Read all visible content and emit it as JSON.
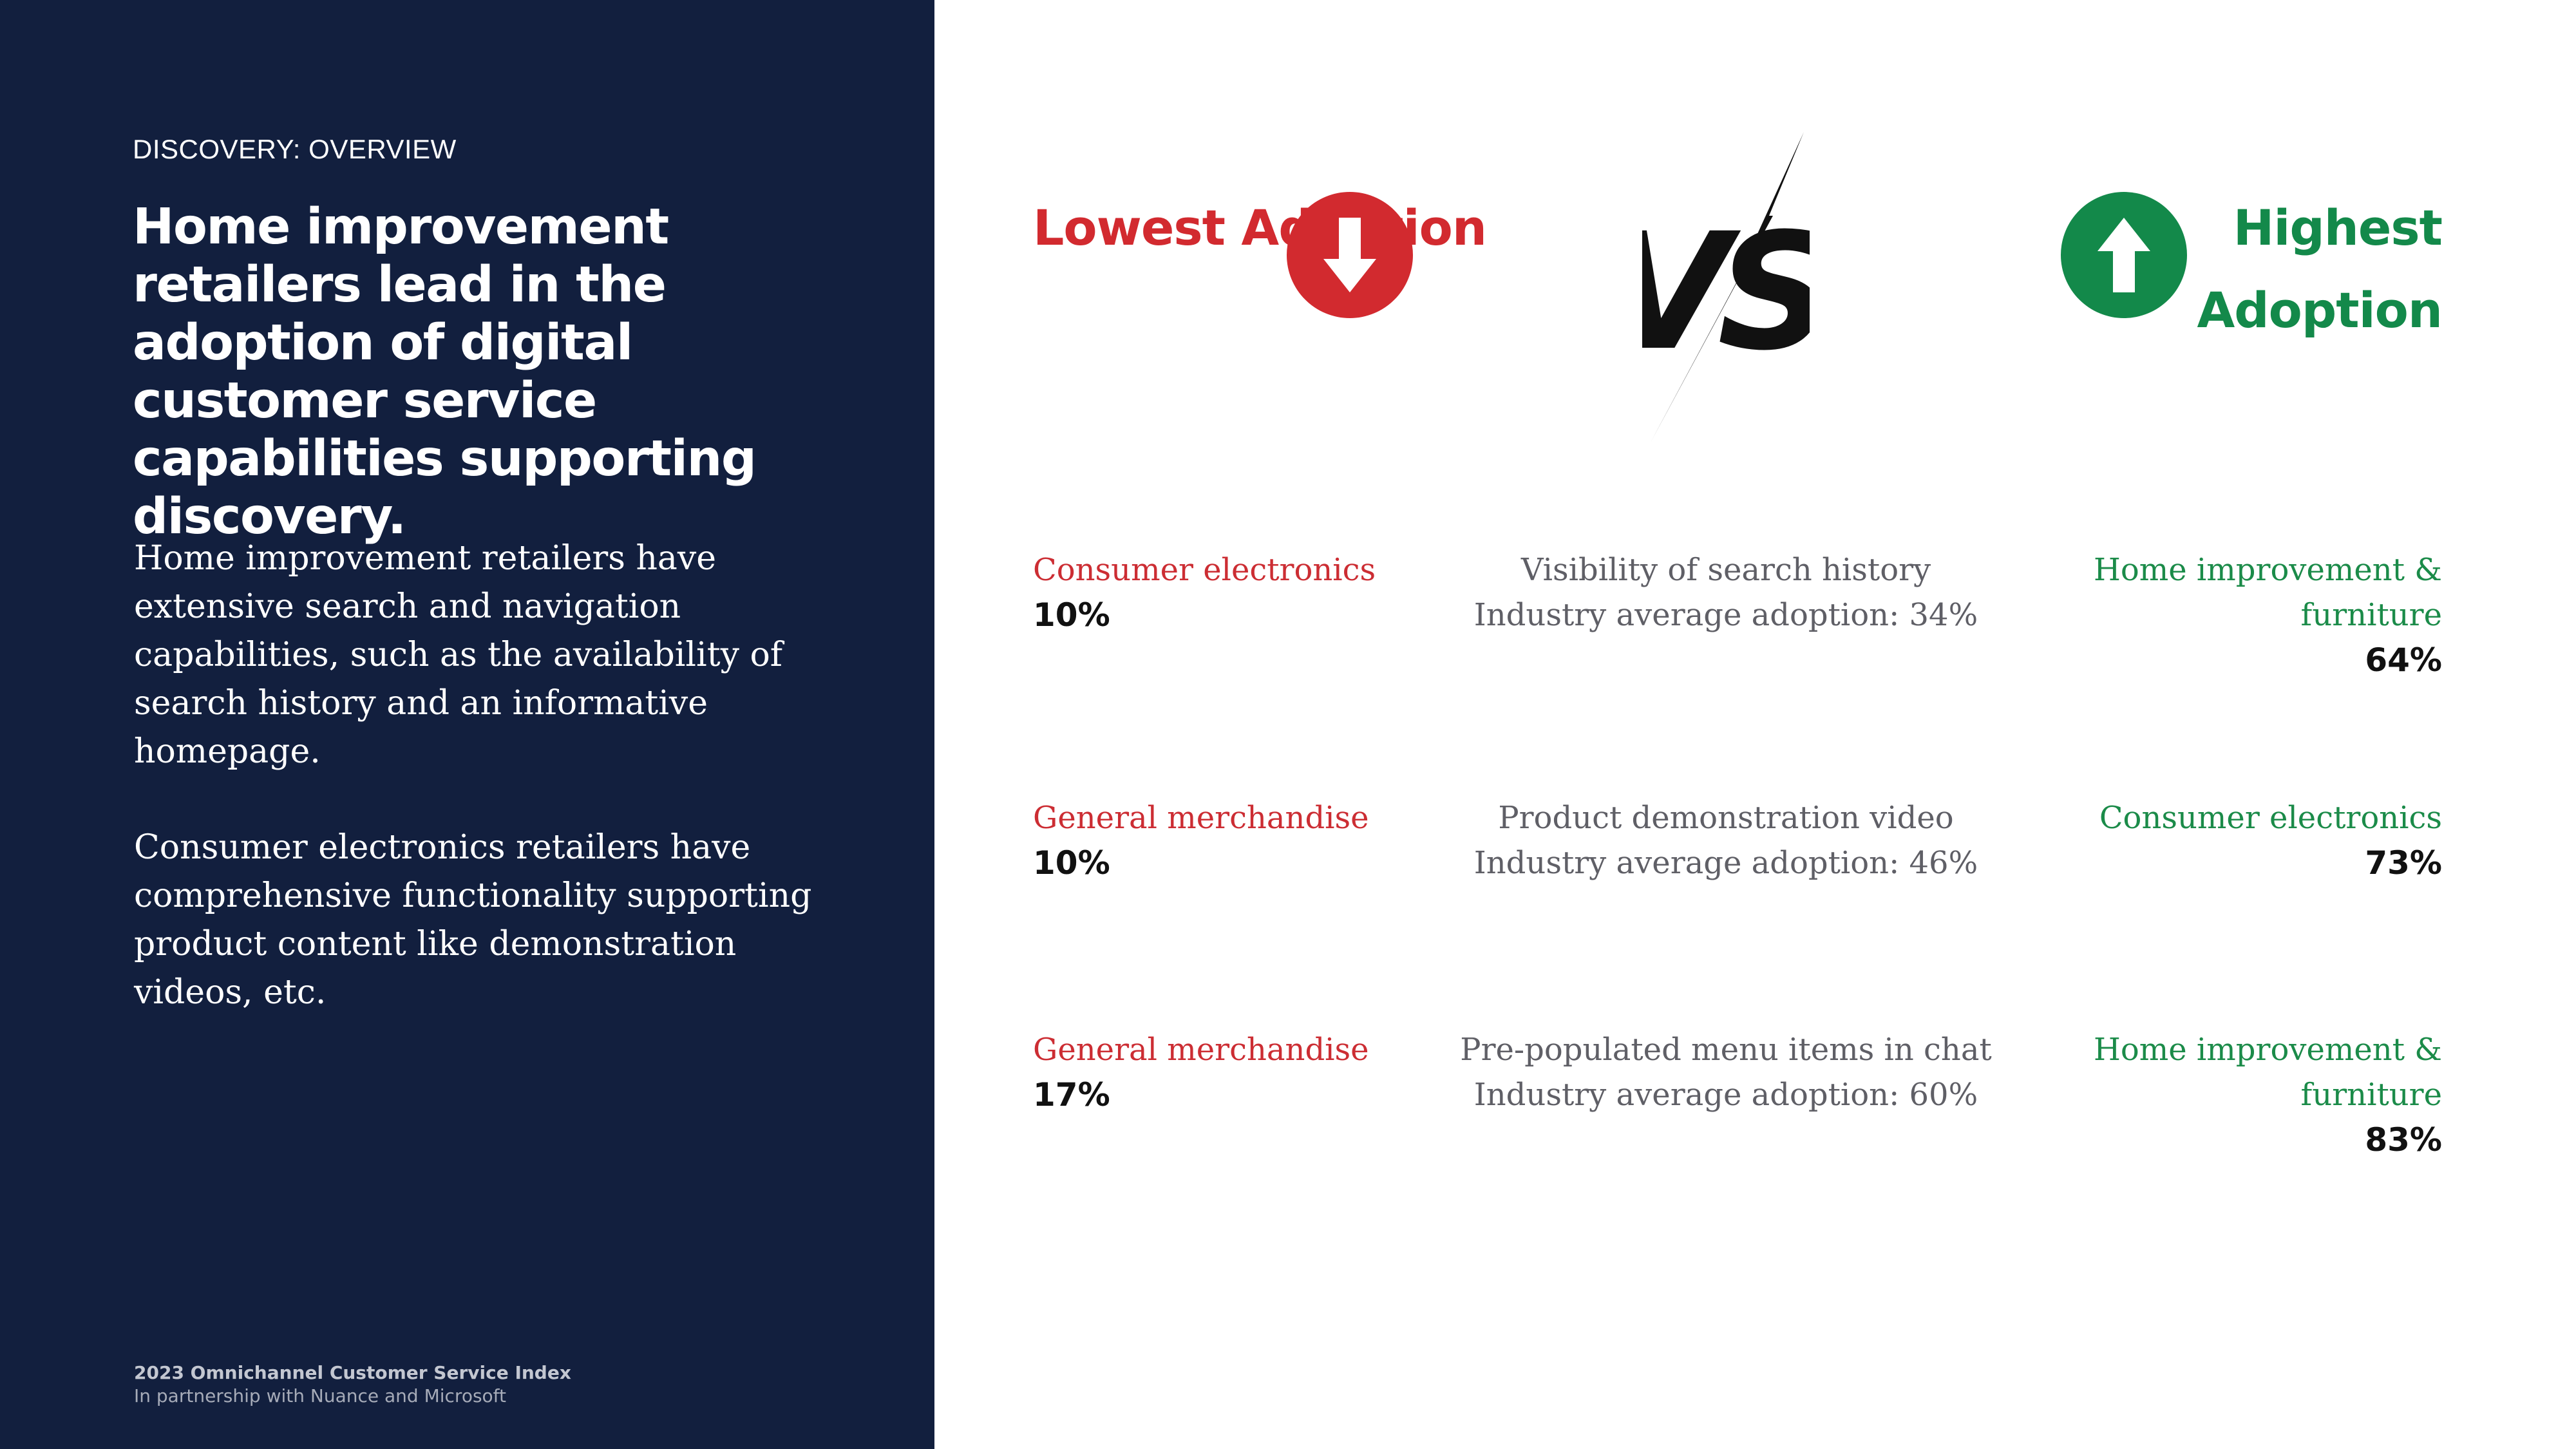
{
  "left_panel": {
    "eyebrow": "DISCOVERY: OVERVIEW",
    "headline": "Home improvement retailers lead in the adoption of digital customer service capabilities supporting discovery.",
    "paragraph_1": "Home improvement retailers have extensive search and navigation capabilities, such as the availability of search history and an informative homepage.",
    "paragraph_2": "Consumer electronics retailers have comprehensive functionality supporting product content like demonstration videos, etc.",
    "footer_title": "2023 Omnichannel Customer Service Index",
    "footer_subtitle": "In partnership with Nuance and Microsoft"
  },
  "comparison": {
    "lowest_heading": "Lowest Adoption",
    "highest_heading": "Highest Adoption",
    "vs_label": "VS",
    "colors": {
      "lowest": "#d22a2f",
      "highest": "#13894a",
      "navy": "#121f3e"
    },
    "icons": {
      "lowest": "down-arrow-circle-icon",
      "highest": "up-arrow-circle-icon",
      "versus": "versus-icon"
    },
    "rows": [
      {
        "lowest_segment": "Consumer electronics",
        "lowest_value": "10%",
        "capability": "Visibility of search history",
        "industry_average": "Industry average adoption: 34%",
        "highest_segment": "Home improvement & furniture",
        "highest_value": "64%"
      },
      {
        "lowest_segment": "General merchandise",
        "lowest_value": "10%",
        "capability": "Product demonstration video",
        "industry_average": "Industry average adoption: 46%",
        "highest_segment": "Consumer electronics",
        "highest_value": "73%"
      },
      {
        "lowest_segment": "General merchandise",
        "lowest_value": "17%",
        "capability": "Pre-populated menu items in chat",
        "industry_average": "Industry average adoption: 60%",
        "highest_segment": "Home improvement & furniture",
        "highest_value": "83%"
      }
    ]
  }
}
